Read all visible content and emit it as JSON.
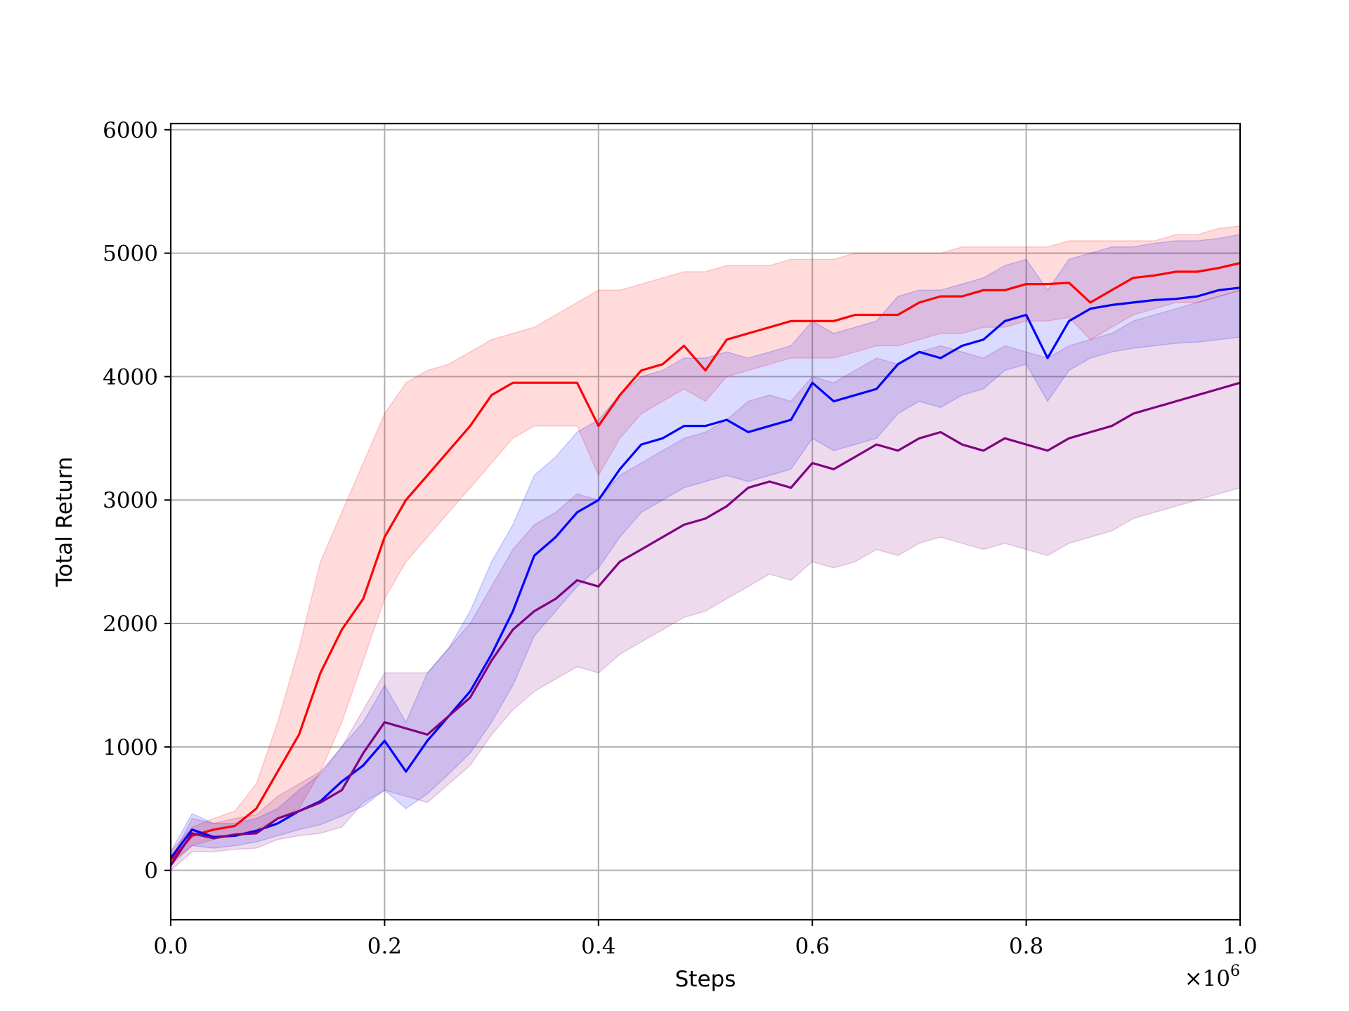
{
  "chart_data": {
    "type": "line",
    "xlabel": "Steps",
    "ylabel": "Total Return",
    "x_multiplier_label": "×10",
    "x_multiplier_exponent": "6",
    "xlim": [
      0.0,
      1.0
    ],
    "ylim": [
      -400,
      6050
    ],
    "x_ticks": [
      0.0,
      0.2,
      0.4,
      0.6,
      0.8,
      1.0
    ],
    "x_tick_labels": [
      "0.0",
      "0.2",
      "0.4",
      "0.6",
      "0.8",
      "1.0"
    ],
    "y_ticks": [
      0,
      1000,
      2000,
      3000,
      4000,
      5000,
      6000
    ],
    "y_tick_labels": [
      "0",
      "1000",
      "2000",
      "3000",
      "4000",
      "5000",
      "6000"
    ],
    "grid": true,
    "colors": {
      "red": "#ff0000",
      "blue": "#0000ff",
      "purple": "#800080"
    },
    "series": [
      {
        "color": "#ff0000",
        "x": [
          0.0,
          0.02,
          0.04,
          0.06,
          0.08,
          0.1,
          0.12,
          0.14,
          0.16,
          0.18,
          0.2,
          0.22,
          0.24,
          0.26,
          0.28,
          0.3,
          0.32,
          0.34,
          0.36,
          0.38,
          0.4,
          0.42,
          0.44,
          0.46,
          0.48,
          0.5,
          0.52,
          0.54,
          0.56,
          0.58,
          0.6,
          0.62,
          0.64,
          0.66,
          0.68,
          0.7,
          0.72,
          0.74,
          0.76,
          0.78,
          0.8,
          0.82,
          0.84,
          0.86,
          0.88,
          0.9,
          0.92,
          0.94,
          0.96,
          0.98,
          1.0
        ],
        "y": [
          80,
          280,
          330,
          360,
          500,
          800,
          1100,
          1600,
          1950,
          2200,
          2700,
          3000,
          3200,
          3400,
          3600,
          3850,
          3950,
          3950,
          3950,
          3950,
          3600,
          3850,
          4050,
          4100,
          4250,
          4050,
          4300,
          4350,
          4400,
          4450,
          4450,
          4450,
          4500,
          4500,
          4500,
          4600,
          4650,
          4650,
          4700,
          4700,
          4750,
          4750,
          4760,
          4600,
          4700,
          4800,
          4820,
          4850,
          4850,
          4880,
          4920
        ],
        "lower": [
          40,
          200,
          250,
          290,
          330,
          420,
          500,
          800,
          1200,
          1700,
          2200,
          2500,
          2700,
          2900,
          3100,
          3300,
          3500,
          3600,
          3600,
          3600,
          3200,
          3500,
          3700,
          3800,
          3900,
          3800,
          4000,
          4050,
          4100,
          4150,
          4150,
          4150,
          4200,
          4250,
          4250,
          4300,
          4350,
          4350,
          4400,
          4400,
          4450,
          4450,
          4480,
          4300,
          4400,
          4500,
          4550,
          4600,
          4600,
          4650,
          4700
        ],
        "upper": [
          150,
          350,
          420,
          480,
          700,
          1200,
          1800,
          2500,
          2900,
          3300,
          3700,
          3950,
          4050,
          4100,
          4200,
          4300,
          4350,
          4400,
          4500,
          4600,
          4700,
          4700,
          4750,
          4800,
          4850,
          4850,
          4900,
          4900,
          4900,
          4950,
          4950,
          4950,
          5000,
          5000,
          5000,
          5000,
          5000,
          5050,
          5050,
          5050,
          5050,
          5050,
          5100,
          5100,
          5100,
          5100,
          5100,
          5150,
          5150,
          5200,
          5220
        ]
      },
      {
        "color": "#0000ff",
        "x": [
          0.0,
          0.02,
          0.04,
          0.06,
          0.08,
          0.1,
          0.12,
          0.14,
          0.16,
          0.18,
          0.2,
          0.22,
          0.24,
          0.26,
          0.28,
          0.3,
          0.32,
          0.34,
          0.36,
          0.38,
          0.4,
          0.42,
          0.44,
          0.46,
          0.48,
          0.5,
          0.52,
          0.54,
          0.56,
          0.58,
          0.6,
          0.62,
          0.64,
          0.66,
          0.68,
          0.7,
          0.72,
          0.74,
          0.76,
          0.78,
          0.8,
          0.82,
          0.84,
          0.86,
          0.88,
          0.9,
          0.92,
          0.94,
          0.96,
          0.98,
          1.0
        ],
        "y": [
          100,
          330,
          270,
          280,
          320,
          380,
          480,
          560,
          720,
          850,
          1050,
          800,
          1050,
          1250,
          1450,
          1750,
          2100,
          2550,
          2700,
          2900,
          3000,
          3250,
          3450,
          3500,
          3600,
          3600,
          3650,
          3550,
          3600,
          3650,
          3950,
          3800,
          3850,
          3900,
          4100,
          4200,
          4150,
          4250,
          4300,
          4450,
          4500,
          4150,
          4450,
          4550,
          4580,
          4600,
          4620,
          4630,
          4650,
          4700,
          4720
        ],
        "lower": [
          60,
          200,
          180,
          200,
          230,
          280,
          330,
          370,
          440,
          520,
          650,
          500,
          620,
          780,
          950,
          1200,
          1500,
          1900,
          2100,
          2300,
          2450,
          2700,
          2900,
          3000,
          3100,
          3150,
          3200,
          3150,
          3200,
          3250,
          3500,
          3400,
          3450,
          3500,
          3700,
          3800,
          3750,
          3850,
          3900,
          4050,
          4100,
          3800,
          4050,
          4150,
          4200,
          4230,
          4250,
          4270,
          4280,
          4300,
          4320
        ],
        "upper": [
          150,
          460,
          380,
          380,
          420,
          500,
          650,
          780,
          1000,
          1200,
          1500,
          1200,
          1600,
          1800,
          2100,
          2500,
          2800,
          3200,
          3350,
          3550,
          3650,
          3850,
          4000,
          4050,
          4150,
          4150,
          4200,
          4150,
          4200,
          4250,
          4450,
          4350,
          4400,
          4450,
          4650,
          4700,
          4700,
          4750,
          4800,
          4900,
          4950,
          4700,
          4950,
          5000,
          5050,
          5050,
          5080,
          5100,
          5100,
          5120,
          5150
        ]
      },
      {
        "color": "#800080",
        "x": [
          0.0,
          0.02,
          0.04,
          0.06,
          0.08,
          0.1,
          0.12,
          0.14,
          0.16,
          0.18,
          0.2,
          0.22,
          0.24,
          0.26,
          0.28,
          0.3,
          0.32,
          0.34,
          0.36,
          0.38,
          0.4,
          0.42,
          0.44,
          0.46,
          0.48,
          0.5,
          0.52,
          0.54,
          0.56,
          0.58,
          0.6,
          0.62,
          0.64,
          0.66,
          0.68,
          0.7,
          0.72,
          0.74,
          0.76,
          0.78,
          0.8,
          0.82,
          0.84,
          0.86,
          0.88,
          0.9,
          0.92,
          0.94,
          0.96,
          0.98,
          1.0
        ],
        "y": [
          40,
          300,
          260,
          290,
          300,
          420,
          480,
          550,
          650,
          950,
          1200,
          1150,
          1100,
          1250,
          1400,
          1700,
          1950,
          2100,
          2200,
          2350,
          2300,
          2500,
          2600,
          2700,
          2800,
          2850,
          2950,
          3100,
          3150,
          3100,
          3300,
          3250,
          3350,
          3450,
          3400,
          3500,
          3550,
          3450,
          3400,
          3500,
          3450,
          3400,
          3500,
          3550,
          3600,
          3700,
          3750,
          3800,
          3850,
          3900,
          3950
        ],
        "lower": [
          0,
          150,
          150,
          170,
          180,
          250,
          280,
          300,
          350,
          550,
          650,
          600,
          550,
          700,
          850,
          1100,
          1300,
          1450,
          1550,
          1650,
          1600,
          1750,
          1850,
          1950,
          2050,
          2100,
          2200,
          2300,
          2400,
          2350,
          2500,
          2450,
          2500,
          2600,
          2550,
          2650,
          2700,
          2650,
          2600,
          2650,
          2600,
          2550,
          2650,
          2700,
          2750,
          2850,
          2900,
          2950,
          3000,
          3050,
          3100
        ],
        "upper": [
          80,
          420,
          380,
          420,
          450,
          600,
          700,
          800,
          1000,
          1300,
          1600,
          1600,
          1600,
          1800,
          2000,
          2300,
          2600,
          2800,
          2900,
          3050,
          3000,
          3200,
          3300,
          3400,
          3500,
          3550,
          3650,
          3800,
          3850,
          3800,
          4000,
          3950,
          4050,
          4150,
          4100,
          4200,
          4250,
          4200,
          4150,
          4250,
          4200,
          4150,
          4250,
          4300,
          4350,
          4450,
          4500,
          4550,
          4600,
          4650,
          4700
        ]
      }
    ]
  }
}
